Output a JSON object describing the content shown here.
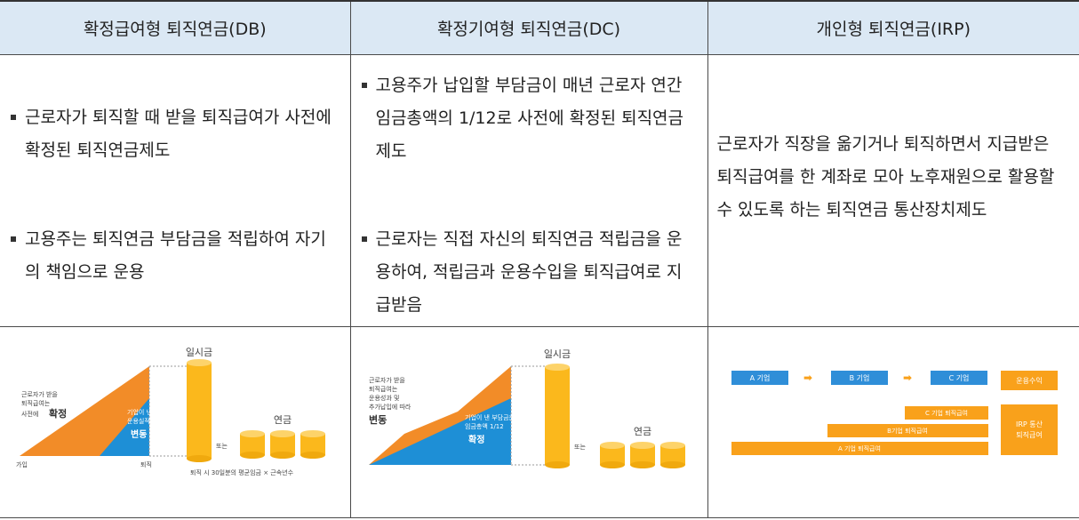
{
  "columns": [
    {
      "title": "확정급여형 퇴직연금(DB)",
      "bullets": [
        "근로자가 퇴직할 때 받을 퇴직급여가 사전에 확정된 퇴직연금제도",
        "고용주는 퇴직연금 부담금을 적립하여 자기의 책임으로 운용"
      ],
      "figure": {
        "lump_sum": "일시금",
        "pension": "연금",
        "or": "또는",
        "left_note": [
          "근로자가 받을",
          "퇴직급여는",
          "사전에"
        ],
        "left_note_strong": "확정",
        "blue_note": [
          "기업이 낸 부담금은",
          "운용실적에 따라"
        ],
        "blue_note_strong": "변동",
        "join": "가입",
        "retire": "퇴직",
        "formula": "퇴직 시 30일분의 평균임금 × 근속년수"
      }
    },
    {
      "title": "확정기여형 퇴직연금(DC)",
      "bullets": [
        "고용주가 납입할 부담금이 매년 근로자 연간 임금총액의 1/12로 사전에 확정된 퇴직연금제도",
        "근로자는 직접 자신의 퇴직연금 적립금을 운용하여, 적립금과 운용수입을 퇴직급여로 지급받음"
      ],
      "figure": {
        "lump_sum": "일시금",
        "pension": "연금",
        "or": "또는",
        "orange_note": [
          "근로자가 받을",
          "퇴직급여는",
          "운용성과 및",
          "추가납입에 따라"
        ],
        "orange_note_strong": "변동",
        "blue_note": [
          "기업이 낸 부담금은",
          "임금총액 1/12"
        ],
        "blue_note_strong": "확정"
      }
    },
    {
      "title": "개인형 퇴직연금(IRP)",
      "text": "근로자가 직장을 옮기거나 퇴직하면서 지급받은 퇴직급여를 한 계좌로 모아 노후재원으로 활용할 수 있도록 하는 퇴직연금 통산장치제도",
      "figure": {
        "company_a": "A 기업",
        "company_b": "B 기업",
        "company_c": "C 기업",
        "income": "운용수익",
        "bar_c": "C 기업 퇴직급여",
        "bar_b": "B기업 퇴직급여",
        "bar_a": "A 기업 퇴직급여",
        "irp_box": [
          "IRP 통산",
          "퇴직급여"
        ]
      }
    }
  ],
  "colors": {
    "header_bg": "#dbe8f4",
    "orange": "#f28c28",
    "blue": "#1e8fd6",
    "gold": "#fbb81c",
    "irp_blue": "#2f8ed8",
    "irp_orange": "#f9a11b"
  }
}
